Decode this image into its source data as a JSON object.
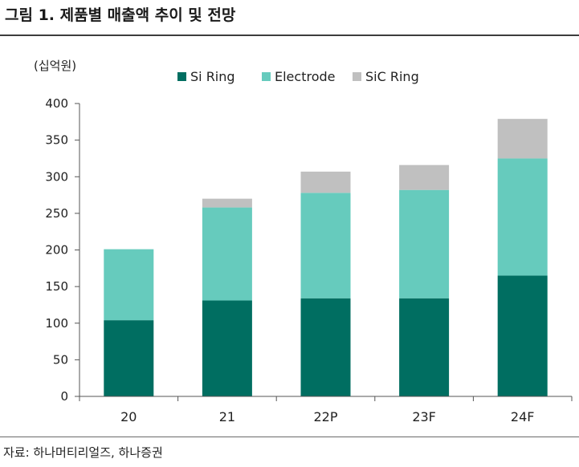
{
  "figure": {
    "title": "그림 1. 제품별 매출액 추이 및 전망",
    "source": "자료: 하나머티리얼즈, 하나증권"
  },
  "chart_data": {
    "type": "bar",
    "stacked": true,
    "unit_label": "(십억원)",
    "categories": [
      "20",
      "21",
      "22P",
      "23F",
      "24F"
    ],
    "series": [
      {
        "name": "Si Ring",
        "color": "#006e61",
        "values": [
          104,
          131,
          134,
          134,
          165
        ]
      },
      {
        "name": "Electrode",
        "color": "#66cbbd",
        "values": [
          97,
          127,
          144,
          148,
          160
        ]
      },
      {
        "name": "SiC Ring",
        "color": "#c0c0c0",
        "values": [
          0,
          12,
          29,
          34,
          54
        ]
      }
    ],
    "ylim": [
      0,
      400
    ],
    "yticks": [
      0,
      50,
      100,
      150,
      200,
      250,
      300,
      350,
      400
    ],
    "grid": false,
    "legend_position": "top"
  }
}
